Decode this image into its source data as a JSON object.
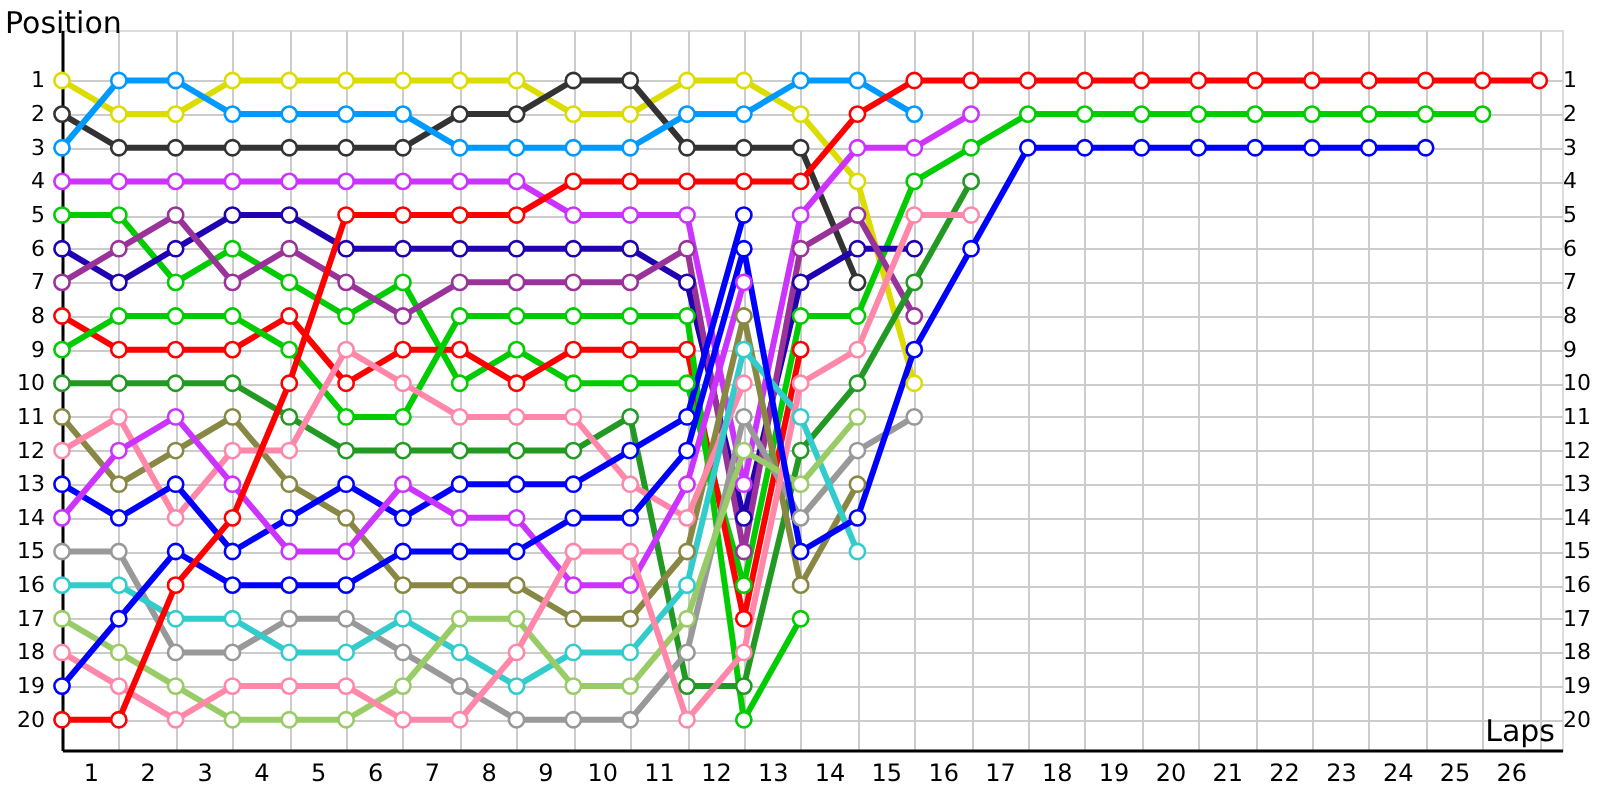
{
  "chart_data": {
    "type": "line",
    "xlabel": "Laps",
    "ylabel": "Position",
    "x": [
      0,
      1,
      2,
      3,
      4,
      5,
      6,
      7,
      8,
      9,
      10,
      11,
      12,
      13,
      14,
      15,
      16,
      17,
      18,
      19,
      20,
      21,
      22,
      23,
      24,
      25,
      26
    ],
    "xlim": [
      0,
      26.4
    ],
    "xticks": [
      {
        "value": 0,
        "label": null
      },
      {
        "value": 0.5,
        "label": "1"
      },
      {
        "value": 1,
        "label": null
      },
      {
        "value": 1.5,
        "label": "2"
      },
      {
        "value": 2,
        "label": null
      },
      {
        "value": 2.5,
        "label": "3"
      },
      {
        "value": 3,
        "label": null
      },
      {
        "value": 3.5,
        "label": "4"
      },
      {
        "value": 4,
        "label": null
      },
      {
        "value": 4.5,
        "label": "5"
      },
      {
        "value": 5,
        "label": null
      },
      {
        "value": 5.5,
        "label": "6"
      },
      {
        "value": 6,
        "label": null
      },
      {
        "value": 6.5,
        "label": "7"
      },
      {
        "value": 7,
        "label": null
      },
      {
        "value": 7.5,
        "label": "8"
      },
      {
        "value": 8,
        "label": null
      },
      {
        "value": 8.5,
        "label": "9"
      },
      {
        "value": 9,
        "label": null
      },
      {
        "value": 9.5,
        "label": "10"
      },
      {
        "value": 10,
        "label": null
      },
      {
        "value": 10.5,
        "label": "11"
      },
      {
        "value": 11,
        "label": null
      },
      {
        "value": 11.5,
        "label": "12"
      },
      {
        "value": 12,
        "label": null
      },
      {
        "value": 12.5,
        "label": "13"
      },
      {
        "value": 13,
        "label": null
      },
      {
        "value": 13.5,
        "label": "14"
      },
      {
        "value": 14,
        "label": null
      },
      {
        "value": 14.5,
        "label": "15"
      },
      {
        "value": 15,
        "label": null
      },
      {
        "value": 15.5,
        "label": "16"
      },
      {
        "value": 16,
        "label": null
      },
      {
        "value": 16.5,
        "label": "17"
      },
      {
        "value": 17,
        "label": null
      },
      {
        "value": 17.5,
        "label": "18"
      },
      {
        "value": 18,
        "label": null
      },
      {
        "value": 18.5,
        "label": "19"
      },
      {
        "value": 19,
        "label": null
      },
      {
        "value": 19.5,
        "label": "20"
      },
      {
        "value": 20,
        "label": null
      },
      {
        "value": 20.5,
        "label": "21"
      },
      {
        "value": 21,
        "label": null
      },
      {
        "value": 21.5,
        "label": "22"
      },
      {
        "value": 22,
        "label": null
      },
      {
        "value": 22.5,
        "label": "23"
      },
      {
        "value": 23,
        "label": null
      },
      {
        "value": 23.5,
        "label": "24"
      },
      {
        "value": 24,
        "label": null
      },
      {
        "value": 24.5,
        "label": "25"
      },
      {
        "value": 25,
        "label": null
      },
      {
        "value": 25.5,
        "label": "26"
      },
      {
        "value": 26,
        "label": null
      }
    ],
    "ylim": [
      20.9,
      -0.5
    ],
    "yticks": [
      1,
      2,
      3,
      4,
      5,
      6,
      7,
      8,
      9,
      10,
      11,
      12,
      13,
      14,
      15,
      16,
      17,
      18,
      19,
      20
    ],
    "y2lim": [
      20.9,
      -0.5
    ],
    "y2ticks": [
      1,
      2,
      3,
      4,
      5,
      6,
      7,
      8,
      9,
      10,
      11,
      12,
      13,
      14,
      15,
      16,
      17,
      18,
      19,
      20
    ],
    "grid": true,
    "marker": "circle",
    "line_style": "solid",
    "series": [
      {
        "color": "#dcdc00",
        "values": [
          1,
          2,
          2,
          1,
          1,
          1,
          1,
          1,
          1,
          2,
          2,
          1,
          1,
          2,
          4,
          10,
          null,
          null,
          null,
          null,
          null,
          null,
          null,
          null,
          null,
          null,
          null
        ]
      },
      {
        "color": "#333333",
        "values": [
          2,
          3,
          3,
          3,
          3,
          3,
          3,
          2,
          2,
          1,
          1,
          3,
          3,
          3,
          7,
          null,
          null,
          null,
          null,
          null,
          null,
          null,
          null,
          null,
          null,
          null,
          null
        ]
      },
      {
        "color": "#0099ff",
        "values": [
          3,
          1,
          1,
          2,
          2,
          2,
          2,
          3,
          3,
          3,
          3,
          2,
          2,
          1,
          1,
          2,
          null,
          null,
          null,
          null,
          null,
          null,
          null,
          null,
          null,
          null,
          null
        ]
      },
      {
        "color": "#cc33ff",
        "values": [
          4,
          4,
          4,
          4,
          4,
          4,
          4,
          4,
          4,
          5,
          5,
          5,
          13,
          5,
          3,
          3,
          2,
          null,
          null,
          null,
          null,
          null,
          null,
          null,
          null,
          null,
          null
        ]
      },
      {
        "color": "#00cc00",
        "values": [
          5,
          5,
          7,
          6,
          7,
          8,
          7,
          10,
          9,
          10,
          10,
          10,
          16,
          8,
          8,
          4,
          3,
          2,
          2,
          2,
          2,
          2,
          2,
          2,
          2,
          2,
          null
        ]
      },
      {
        "color": "#2000b0",
        "values": [
          6,
          7,
          6,
          5,
          5,
          6,
          6,
          6,
          6,
          6,
          6,
          7,
          14,
          7,
          6,
          6,
          null,
          null,
          null,
          null,
          null,
          null,
          null,
          null,
          null,
          null,
          null
        ]
      },
      {
        "color": "#993399",
        "values": [
          7,
          6,
          5,
          7,
          6,
          7,
          8,
          7,
          7,
          7,
          7,
          6,
          15,
          6,
          5,
          8,
          null,
          null,
          null,
          null,
          null,
          null,
          null,
          null,
          null,
          null,
          null
        ]
      },
      {
        "color": "#ff0000",
        "values": [
          8,
          9,
          9,
          9,
          8,
          10,
          9,
          9,
          10,
          9,
          9,
          9,
          17,
          9,
          null,
          null,
          null,
          null,
          null,
          null,
          null,
          null,
          null,
          null,
          null,
          null,
          null
        ]
      },
      {
        "color": "#00cc00",
        "values": [
          9,
          8,
          8,
          8,
          9,
          11,
          11,
          8,
          8,
          8,
          8,
          8,
          20,
          17,
          null,
          null,
          null,
          null,
          null,
          null,
          null,
          null,
          null,
          null,
          null,
          null,
          null
        ]
      },
      {
        "color": "#229922",
        "values": [
          10,
          10,
          10,
          10,
          11,
          12,
          12,
          12,
          12,
          12,
          11,
          19,
          19,
          12,
          10,
          7,
          4,
          null,
          null,
          null,
          null,
          null,
          null,
          null,
          null,
          null,
          null
        ]
      },
      {
        "color": "#888844",
        "values": [
          11,
          13,
          12,
          11,
          13,
          14,
          16,
          16,
          16,
          17,
          17,
          15,
          8,
          16,
          13,
          null,
          null,
          null,
          null,
          null,
          null,
          null,
          null,
          null,
          null,
          null,
          null
        ]
      },
      {
        "color": "#ff88aa",
        "values": [
          12,
          11,
          14,
          12,
          12,
          9,
          10,
          11,
          11,
          11,
          13,
          14,
          10,
          null,
          null,
          null,
          null,
          null,
          null,
          null,
          null,
          null,
          null,
          null,
          null,
          null,
          null
        ]
      },
      {
        "color": "#0000ff",
        "values": [
          13,
          14,
          13,
          15,
          14,
          13,
          14,
          13,
          13,
          13,
          12,
          11,
          5,
          null,
          null,
          null,
          null,
          null,
          null,
          null,
          null,
          null,
          null,
          null,
          null,
          null,
          null
        ]
      },
      {
        "color": "#cc33ff",
        "values": [
          14,
          12,
          11,
          13,
          15,
          15,
          13,
          14,
          14,
          16,
          16,
          13,
          7,
          null,
          null,
          null,
          null,
          null,
          null,
          null,
          null,
          null,
          null,
          null,
          null,
          null,
          null
        ]
      },
      {
        "color": "#999999",
        "values": [
          15,
          15,
          18,
          18,
          17,
          17,
          18,
          19,
          20,
          20,
          20,
          18,
          11,
          14,
          12,
          11,
          null,
          null,
          null,
          null,
          null,
          null,
          null,
          null,
          null,
          null,
          null
        ]
      },
      {
        "color": "#33cccc",
        "values": [
          16,
          16,
          17,
          17,
          18,
          18,
          17,
          18,
          19,
          18,
          18,
          16,
          9,
          11,
          15,
          null,
          null,
          null,
          null,
          null,
          null,
          null,
          null,
          null,
          null,
          null,
          null
        ]
      },
      {
        "color": "#99cc66",
        "values": [
          17,
          18,
          19,
          20,
          20,
          20,
          19,
          17,
          17,
          19,
          19,
          17,
          12,
          13,
          11,
          null,
          null,
          null,
          null,
          null,
          null,
          null,
          null,
          null,
          null,
          null,
          null
        ]
      },
      {
        "color": "#ff88aa",
        "values": [
          18,
          19,
          20,
          19,
          19,
          19,
          20,
          20,
          18,
          15,
          15,
          20,
          18,
          10,
          9,
          5,
          5,
          null,
          null,
          null,
          null,
          null,
          null,
          null,
          null,
          null,
          null
        ]
      },
      {
        "color": "#0000ff",
        "values": [
          19,
          17,
          15,
          16,
          16,
          16,
          15,
          15,
          15,
          14,
          14,
          12,
          6,
          15,
          14,
          9,
          6,
          3,
          3,
          3,
          3,
          3,
          3,
          3,
          3,
          null,
          null
        ]
      },
      {
        "color": "#ff0000",
        "values": [
          20,
          20,
          16,
          14,
          10,
          5,
          5,
          5,
          5,
          4,
          4,
          4,
          4,
          4,
          2,
          1,
          1,
          1,
          1,
          1,
          1,
          1,
          1,
          1,
          1,
          1,
          1
        ]
      }
    ]
  }
}
